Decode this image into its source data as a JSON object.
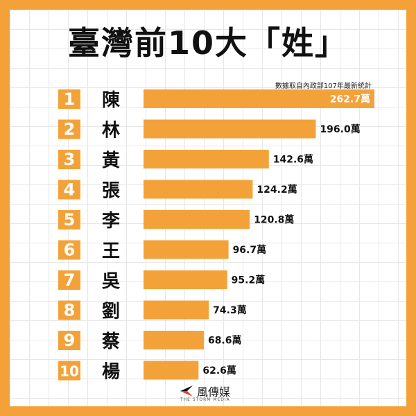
{
  "title": "臺灣前10大「姓」",
  "source_note": "數據取自內政部107年最新統計",
  "logo": {
    "name": "風傳媒",
    "tagline": "THE STORM MEDIA"
  },
  "colors": {
    "accent": "#F3A23A",
    "rank_box": "#F3A23A",
    "bar": "#F3A23A"
  },
  "chart_data": {
    "type": "bar",
    "orientation": "horizontal",
    "title": "臺灣前10大「姓」",
    "ranks": [
      "1",
      "2",
      "3",
      "4",
      "5",
      "6",
      "7",
      "8",
      "9",
      "10"
    ],
    "categories": [
      "陳",
      "林",
      "黃",
      "張",
      "李",
      "王",
      "吳",
      "劉",
      "蔡",
      "楊"
    ],
    "values": [
      262.7,
      196.0,
      142.6,
      124.2,
      120.8,
      96.7,
      95.2,
      74.3,
      68.6,
      62.6
    ],
    "value_labels": [
      "262.7萬",
      "196.0萬",
      "142.6萬",
      "124.2萬",
      "120.8萬",
      "96.7萬",
      "95.2萬",
      "74.3萬",
      "68.6萬",
      "62.6萬"
    ],
    "unit": "萬",
    "grid": false,
    "legend": "none"
  }
}
